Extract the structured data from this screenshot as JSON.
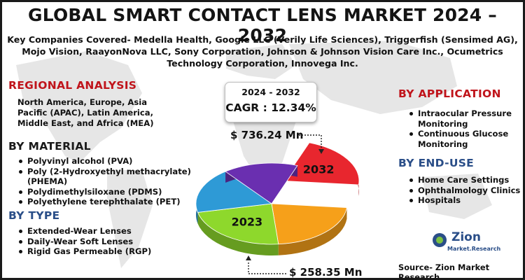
{
  "title": "GLOBAL SMART CONTACT LENS MARKET 2024 – 2032",
  "companies_text": "Key Companies Covered- Medella Health, Google LLC (Verily Life Sciences), Triggerfish (Sensimed AG), Mojo Vision, RaayonNova LLC, Sony Corporation, Johnson & Johnson Vision Care Inc., Ocumetrics Technology Corporation, Innovega Inc.",
  "regional": {
    "heading": "REGIONAL ANALYSIS",
    "text": "North America, Europe, Asia Pacific (APAC), Latin America, Middle East, and Africa (MEA)"
  },
  "material": {
    "heading": "BY MATERIAL",
    "items": [
      "Polyvinyl alcohol (PVA)",
      "Poly (2-Hydroxyethyl methacrylate) (PHEMA)",
      "Polydimethylsiloxane (PDMS)",
      "Polyethylene terephthalate (PET)"
    ]
  },
  "type": {
    "heading": "BY TYPE",
    "items": [
      "Extended-Wear Lenses",
      "Daily-Wear Soft Lenses",
      "Rigid Gas Permeable (RGP)"
    ]
  },
  "application": {
    "heading": "BY APPLICATION",
    "items": [
      "Intraocular Pressure Monitoring",
      "Continuous Glucose Monitoring"
    ]
  },
  "end_use": {
    "heading": "BY END-USE",
    "items": [
      "Home Care Settings",
      "Ophthalmology Clinics",
      "Hospitals"
    ]
  },
  "cagr": {
    "years": "2024 - 2032",
    "value": "CAGR : 12.34%"
  },
  "source": "Source- Zion Market Research",
  "logo": {
    "brand": "Zion",
    "sub": "Market.Research"
  },
  "colors": {
    "title": "#141414",
    "red_heading": "#c0141b",
    "blue_heading": "#2a4e88",
    "slice_2032": "#e8262e",
    "slice_orange": "#f6a01a",
    "slice_2023": "#8ed82c",
    "slice_blue": "#2e9ad6",
    "slice_purple": "#6a2fb0"
  },
  "chart_data": {
    "type": "pie",
    "start_year_value": "$ 258.35  Mn",
    "end_year_value": "$ 736.24 Mn",
    "slices": [
      {
        "label": "2032",
        "value": 21,
        "color": "#e8262e",
        "exploded": true
      },
      {
        "label": "",
        "value": 22,
        "color": "#f6a01a",
        "exploded": false
      },
      {
        "label": "2023",
        "value": 23,
        "color": "#8ed82c",
        "exploded": false
      },
      {
        "label": "",
        "value": 18,
        "color": "#2e9ad6",
        "exploded": false
      },
      {
        "label": "",
        "value": 16,
        "color": "#6a2fb0",
        "exploded": false
      }
    ]
  }
}
